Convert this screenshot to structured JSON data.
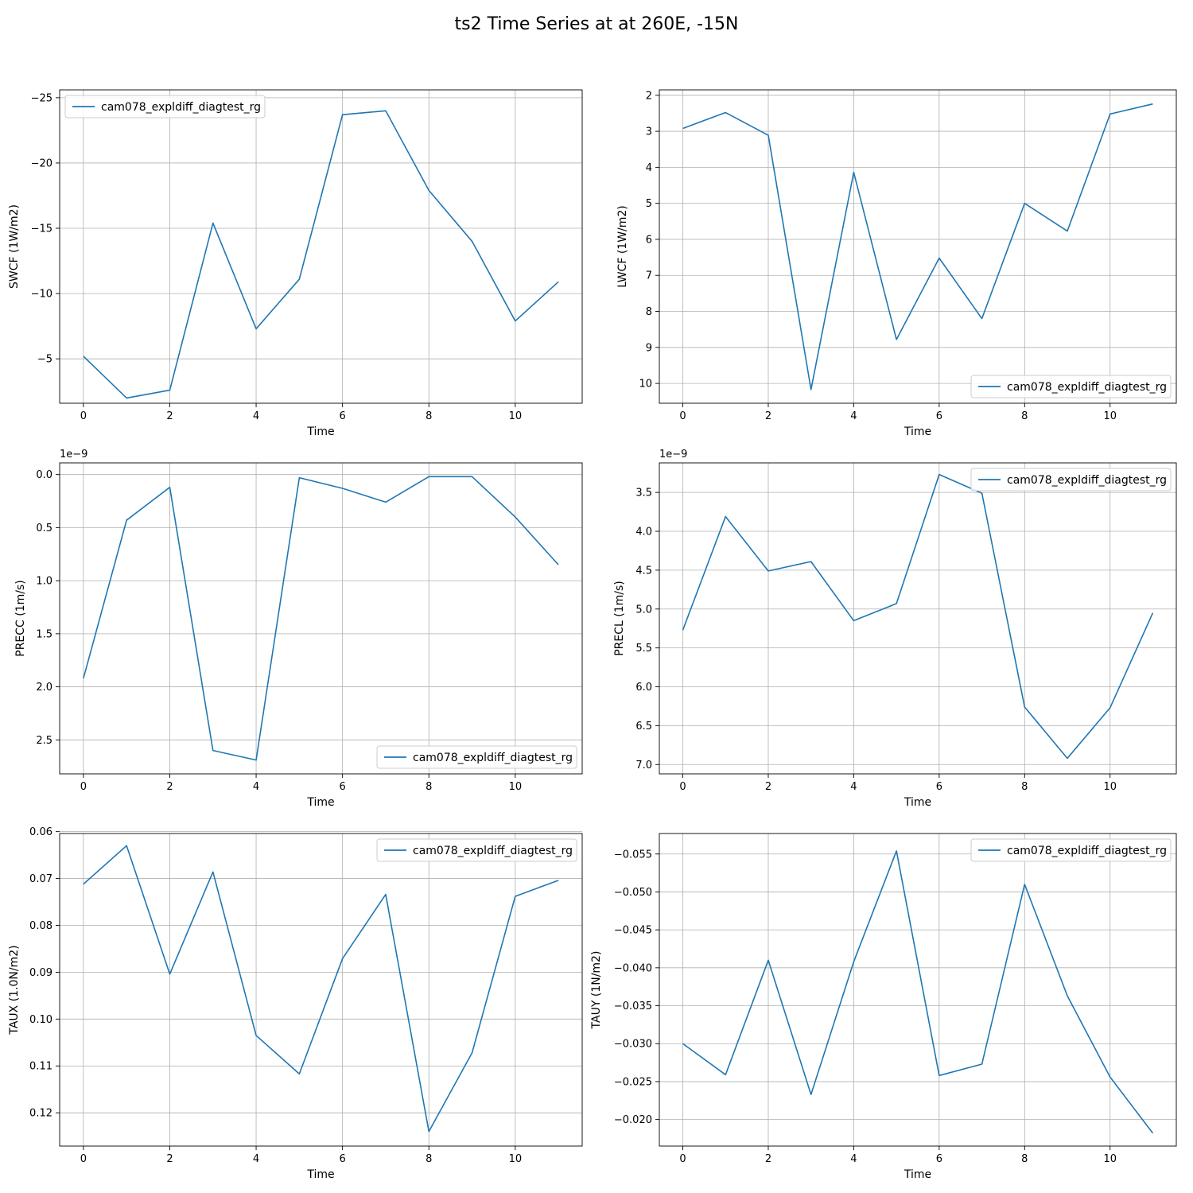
{
  "figure": {
    "suptitle": "ts2 Time Series at at 260E, -15N"
  },
  "chart_data": [
    {
      "type": "line",
      "xlabel": "Time",
      "ylabel": "SWCF (1W/m2)",
      "xlim": [
        -0.55,
        11.55
      ],
      "xticks": [
        0,
        2,
        4,
        6,
        8,
        10
      ],
      "ylim": [
        -1.6,
        -25.6
      ],
      "inverted_y": true,
      "yticks": [
        -25,
        -20,
        -15,
        -10,
        -5
      ],
      "ytick_labels": [
        "−25",
        "−20",
        "−15",
        "−10",
        "−5"
      ],
      "offset_text": "",
      "legend_loc": "upper-left",
      "grid": true,
      "series": [
        {
          "name": "cam078_expldiff_diagtest_rg",
          "color": "#1f77b4",
          "x": [
            0,
            1,
            2,
            3,
            4,
            5,
            6,
            7,
            8,
            9,
            10,
            11
          ],
          "values": [
            -5.2,
            -2.0,
            -2.6,
            -15.4,
            -7.3,
            -11.1,
            -23.7,
            -24.0,
            -17.9,
            -14.0,
            -7.9,
            -10.9
          ]
        }
      ]
    },
    {
      "type": "line",
      "xlabel": "Time",
      "ylabel": "LWCF (1W/m2)",
      "xlim": [
        -0.55,
        11.55
      ],
      "xticks": [
        0,
        2,
        4,
        6,
        8,
        10
      ],
      "ylim": [
        10.55,
        1.85
      ],
      "inverted_y": true,
      "yticks": [
        2,
        3,
        4,
        5,
        6,
        7,
        8,
        9,
        10
      ],
      "ytick_labels": [
        "2",
        "3",
        "4",
        "5",
        "6",
        "7",
        "8",
        "9",
        "10"
      ],
      "offset_text": "",
      "legend_loc": "lower-right",
      "grid": true,
      "series": [
        {
          "name": "cam078_expldiff_diagtest_rg",
          "color": "#1f77b4",
          "x": [
            0,
            1,
            2,
            3,
            4,
            5,
            6,
            7,
            8,
            9,
            10,
            11
          ],
          "values": [
            2.92,
            2.48,
            3.11,
            10.17,
            4.14,
            8.78,
            6.52,
            8.2,
            5.0,
            5.77,
            2.52,
            2.24
          ]
        }
      ]
    },
    {
      "type": "line",
      "xlabel": "Time",
      "ylabel": "PRECC (1m/s)",
      "xlim": [
        -0.55,
        11.55
      ],
      "xticks": [
        0,
        2,
        4,
        6,
        8,
        10
      ],
      "ylim": [
        2.82,
        -0.11
      ],
      "inverted_y": true,
      "yticks": [
        0.0,
        0.5,
        1.0,
        1.5,
        2.0,
        2.5
      ],
      "ytick_labels": [
        "0.0",
        "0.5",
        "1.0",
        "1.5",
        "2.0",
        "2.5"
      ],
      "offset_text": "1e−9",
      "legend_loc": "lower-right",
      "grid": true,
      "series": [
        {
          "name": "cam078_expldiff_diagtest_rg",
          "color": "#1f77b4",
          "x": [
            0,
            1,
            2,
            3,
            4,
            5,
            6,
            7,
            8,
            9,
            10,
            11
          ],
          "values": [
            1.92,
            0.43,
            0.12,
            2.6,
            2.69,
            0.03,
            0.13,
            0.26,
            0.02,
            0.02,
            0.4,
            0.85
          ]
        }
      ]
    },
    {
      "type": "line",
      "xlabel": "Time",
      "ylabel": "PRECL (1m/s)",
      "xlim": [
        -0.55,
        11.55
      ],
      "xticks": [
        0,
        2,
        4,
        6,
        8,
        10
      ],
      "ylim": [
        7.12,
        3.12
      ],
      "inverted_y": true,
      "yticks": [
        3.5,
        4.0,
        4.5,
        5.0,
        5.5,
        6.0,
        6.5,
        7.0
      ],
      "ytick_labels": [
        "3.5",
        "4.0",
        "4.5",
        "5.0",
        "5.5",
        "6.0",
        "6.5",
        "7.0"
      ],
      "offset_text": "1e−9",
      "legend_loc": "upper-right",
      "grid": true,
      "series": [
        {
          "name": "cam078_expldiff_diagtest_rg",
          "color": "#1f77b4",
          "x": [
            0,
            1,
            2,
            3,
            4,
            5,
            6,
            7,
            8,
            9,
            10,
            11
          ],
          "values": [
            5.27,
            3.81,
            4.51,
            4.39,
            5.15,
            4.93,
            3.27,
            3.51,
            6.26,
            6.92,
            6.27,
            5.05
          ]
        }
      ]
    },
    {
      "type": "line",
      "xlabel": "Time",
      "ylabel": "TAUX (1.0N/m2)",
      "xlim": [
        -0.55,
        11.55
      ],
      "xticks": [
        0,
        2,
        4,
        6,
        8,
        10
      ],
      "ylim": [
        0.1271,
        0.0604
      ],
      "inverted_y": true,
      "yticks": [
        0.06,
        0.07,
        0.08,
        0.09,
        0.1,
        0.11,
        0.12
      ],
      "ytick_labels": [
        "0.06",
        "0.07",
        "0.08",
        "0.09",
        "0.10",
        "0.11",
        "0.12"
      ],
      "offset_text": "",
      "legend_loc": "upper-right",
      "grid": true,
      "series": [
        {
          "name": "cam078_expldiff_diagtest_rg",
          "color": "#1f77b4",
          "x": [
            0,
            1,
            2,
            3,
            4,
            5,
            6,
            7,
            8,
            9,
            10,
            11
          ],
          "values": [
            0.0712,
            0.063,
            0.0904,
            0.0686,
            0.1035,
            0.1117,
            0.0871,
            0.0734,
            0.124,
            0.1072,
            0.0738,
            0.0704
          ]
        }
      ]
    },
    {
      "type": "line",
      "xlabel": "Time",
      "ylabel": "TAUY (1N/m2)",
      "xlim": [
        -0.55,
        11.55
      ],
      "xticks": [
        0,
        2,
        4,
        6,
        8,
        10
      ],
      "ylim": [
        -0.0165,
        -0.0577
      ],
      "inverted_y": true,
      "yticks": [
        -0.055,
        -0.05,
        -0.045,
        -0.04,
        -0.035,
        -0.03,
        -0.025,
        -0.02
      ],
      "ytick_labels": [
        "−0.055",
        "−0.050",
        "−0.045",
        "−0.040",
        "−0.035",
        "−0.030",
        "−0.025",
        "−0.020"
      ],
      "offset_text": "",
      "legend_loc": "upper-right",
      "grid": true,
      "series": [
        {
          "name": "cam078_expldiff_diagtest_rg",
          "color": "#1f77b4",
          "x": [
            0,
            1,
            2,
            3,
            4,
            5,
            6,
            7,
            8,
            9,
            10,
            11
          ],
          "values": [
            -0.03,
            -0.0259,
            -0.041,
            -0.0233,
            -0.0408,
            -0.0554,
            -0.0258,
            -0.0273,
            -0.051,
            -0.0363,
            -0.0256,
            -0.0182
          ]
        }
      ]
    }
  ]
}
